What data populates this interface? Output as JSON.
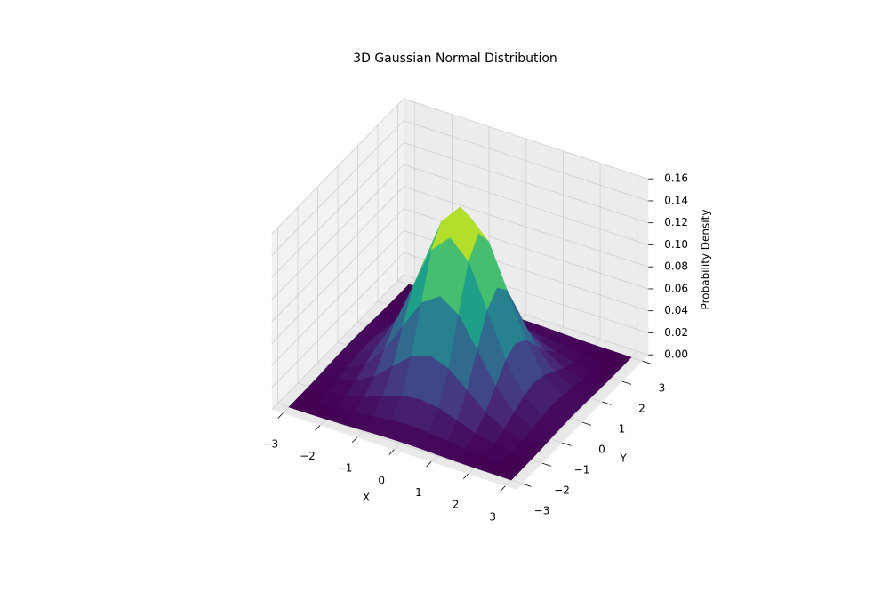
{
  "chart_data": {
    "type": "surface",
    "title": "3D Gaussian Normal Distribution",
    "xlabel": "X",
    "ylabel": "Y",
    "zlabel": "Probability Density",
    "colormap": "viridis",
    "xlim": [
      -3,
      3
    ],
    "ylim": [
      -3,
      3
    ],
    "zlim": [
      0,
      0.16
    ],
    "xticks": [
      {
        "value": -3,
        "label": "−3"
      },
      {
        "value": -2,
        "label": "−2"
      },
      {
        "value": -1,
        "label": "−1"
      },
      0,
      1,
      2,
      3
    ],
    "yticks": [
      {
        "value": -3,
        "label": "−3"
      },
      {
        "value": -2,
        "label": "−2"
      },
      {
        "value": -1,
        "label": "−1"
      },
      0,
      1,
      2,
      3
    ],
    "zticks": [
      {
        "value": 0,
        "label": "0.00"
      },
      {
        "value": 0.02,
        "label": "0.02"
      },
      {
        "value": 0.04,
        "label": "0.04"
      },
      {
        "value": 0.06,
        "label": "0.06"
      },
      {
        "value": 0.08,
        "label": "0.08"
      },
      {
        "value": 0.1,
        "label": "0.10"
      },
      {
        "value": 0.12,
        "label": "0.12"
      },
      {
        "value": 0.14,
        "label": "0.14"
      },
      {
        "value": 0.16,
        "label": "0.16"
      }
    ],
    "x": [
      -3,
      -2.5,
      -2,
      -1.5,
      -1,
      -0.5,
      0,
      0.5,
      1,
      1.5,
      2,
      2.5,
      3
    ],
    "y": [
      -3,
      -2.5,
      -2,
      -1.5,
      -1,
      -0.5,
      0,
      0.5,
      1,
      1.5,
      2,
      2.5,
      3
    ],
    "z": [
      [
        0,
        0.0001,
        0.0002,
        0.0006,
        0.0011,
        0.0016,
        0.0018,
        0.0016,
        0.0011,
        0.0006,
        0.0002,
        0.0001,
        0
      ],
      [
        0.0001,
        0.0003,
        0.0009,
        0.0023,
        0.0042,
        0.0062,
        0.007,
        0.0062,
        0.0042,
        0.0023,
        0.0009,
        0.0003,
        0.0001
      ],
      [
        0.0002,
        0.0009,
        0.0029,
        0.007,
        0.0131,
        0.019,
        0.0215,
        0.019,
        0.0131,
        0.007,
        0.0029,
        0.0009,
        0.0002
      ],
      [
        0.0006,
        0.0023,
        0.007,
        0.0168,
        0.0313,
        0.0456,
        0.0517,
        0.0456,
        0.0313,
        0.0168,
        0.007,
        0.0023,
        0.0006
      ],
      [
        0.0011,
        0.0042,
        0.0131,
        0.0313,
        0.0585,
        0.0852,
        0.0965,
        0.0852,
        0.0585,
        0.0313,
        0.0131,
        0.0042,
        0.0011
      ],
      [
        0.0016,
        0.0062,
        0.019,
        0.0456,
        0.0852,
        0.124,
        0.1405,
        0.124,
        0.0852,
        0.0456,
        0.019,
        0.0062,
        0.0016
      ],
      [
        0.0018,
        0.007,
        0.0215,
        0.0517,
        0.0965,
        0.1405,
        0.1592,
        0.1405,
        0.0965,
        0.0517,
        0.0215,
        0.007,
        0.0018
      ],
      [
        0.0016,
        0.0062,
        0.019,
        0.0456,
        0.0852,
        0.124,
        0.1405,
        0.124,
        0.0852,
        0.0456,
        0.019,
        0.0062,
        0.0016
      ],
      [
        0.0011,
        0.0042,
        0.0131,
        0.0313,
        0.0585,
        0.0852,
        0.0965,
        0.0852,
        0.0585,
        0.0313,
        0.0131,
        0.0042,
        0.0011
      ],
      [
        0.0006,
        0.0023,
        0.007,
        0.0168,
        0.0313,
        0.0456,
        0.0517,
        0.0456,
        0.0313,
        0.0168,
        0.007,
        0.0023,
        0.0006
      ],
      [
        0.0002,
        0.0009,
        0.0029,
        0.007,
        0.0131,
        0.019,
        0.0215,
        0.019,
        0.0131,
        0.007,
        0.0029,
        0.0009,
        0.0002
      ],
      [
        0.0001,
        0.0003,
        0.0009,
        0.0023,
        0.0042,
        0.0062,
        0.007,
        0.0062,
        0.0042,
        0.0023,
        0.0009,
        0.0003,
        0.0001
      ],
      [
        0,
        0.0001,
        0.0002,
        0.0006,
        0.0011,
        0.0016,
        0.0018,
        0.0016,
        0.0011,
        0.0006,
        0.0002,
        0.0001,
        0
      ]
    ]
  }
}
